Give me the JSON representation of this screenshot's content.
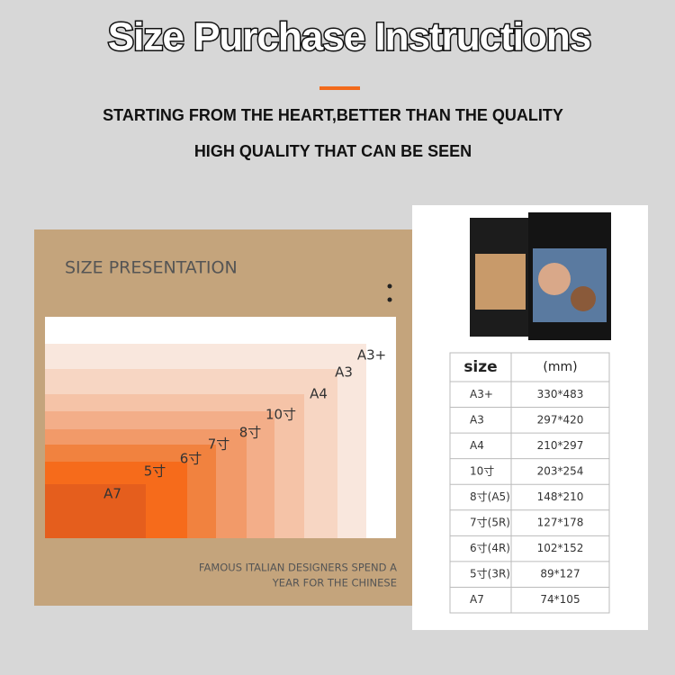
{
  "header": {
    "title": "Size Purchase Instructions",
    "subtitle_lines": [
      "STARTING FROM THE HEART,BETTER THAN THE QUALITY",
      "HIGH QUALITY THAT CAN BE SEEN"
    ]
  },
  "size_panel": {
    "title": "SIZE PRESENTATION",
    "sizes": [
      "A3+",
      "A3",
      "A4",
      "10寸",
      "8寸",
      "7寸",
      "6寸",
      "5寸",
      "A7"
    ],
    "caption_lines": [
      "FAMOUS ITALIAN DESIGNERS SPEND A",
      "YEAR FOR THE CHINESE"
    ]
  },
  "table": {
    "header": [
      "size",
      "(mm)"
    ],
    "rows": [
      [
        "A3+",
        "330*483"
      ],
      [
        "A3",
        "297*420"
      ],
      [
        "A4",
        "210*297"
      ],
      [
        "10寸",
        "203*254"
      ],
      [
        "8寸(A5)",
        "148*210"
      ],
      [
        "7寸(5R)",
        "127*178"
      ],
      [
        "6寸(4R)",
        "102*152"
      ],
      [
        "5寸(3R)",
        "89*127"
      ],
      [
        "A7",
        "74*105"
      ]
    ]
  }
}
